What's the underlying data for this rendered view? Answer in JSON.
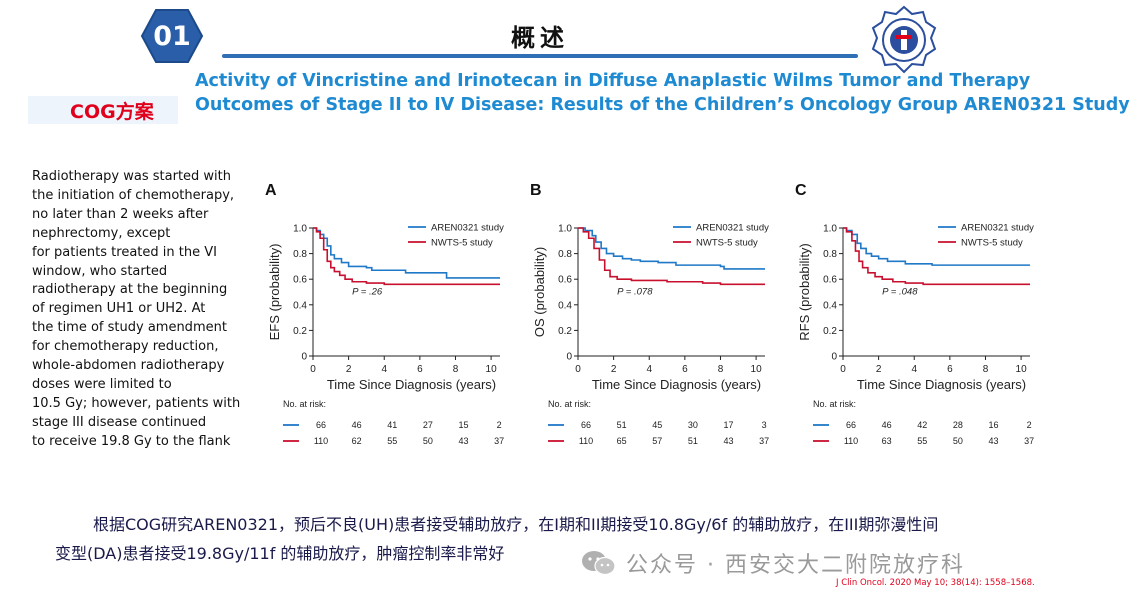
{
  "header": {
    "badge_number": "01",
    "title": "概述",
    "accent_color": "#2e6fb5",
    "badge_color": "#2a5ea8"
  },
  "cog_label": "COG方案",
  "study_title": {
    "line1": "Activity of Vincristine and Irinotecan in Diffuse Anaplastic Wilms Tumor and Therapy",
    "line2": "Outcomes of Stage II to IV Disease: Results of the Children’s Oncology Group AREN0321 Study"
  },
  "description_lines": [
    "Radiotherapy was started with",
    "the initiation of chemotherapy,",
    "no later than 2 weeks after",
    "nephrectomy, except",
    "for patients treated in the VI",
    "window, who started",
    "radiotherapy at the beginning",
    "of regimen UH1 or UH2. At",
    "the time of study amendment",
    "for chemotherapy reduction,",
    "whole-abdomen radiotherapy",
    "doses were limited to",
    "10.5 Gy; however, patients with",
    "stage III disease continued",
    "to receive 19.8 Gy to the flank"
  ],
  "chart_data": [
    {
      "type": "line",
      "panel_label": "A",
      "ylabel": "EFS (probability)",
      "xlabel": "Time Since Diagnosis (years)",
      "xlim": [
        0,
        10.5
      ],
      "ylim": [
        0,
        1.0
      ],
      "xticks": [
        0,
        2,
        4,
        6,
        8,
        10
      ],
      "yticks": [
        0,
        0.2,
        0.4,
        0.6,
        0.8,
        1.0
      ],
      "ytick_labels": [
        "0",
        "0.2",
        "0.4",
        "0.6",
        "0.8",
        "1.0"
      ],
      "p_value": "P = .26",
      "legend_position": "top-right",
      "series": [
        {
          "name": "AREN0321 study",
          "color": "#1f78c8",
          "points": [
            [
              0,
              1.0
            ],
            [
              0.2,
              0.98
            ],
            [
              0.4,
              0.95
            ],
            [
              0.6,
              0.92
            ],
            [
              0.8,
              0.86
            ],
            [
              1.0,
              0.79
            ],
            [
              1.2,
              0.76
            ],
            [
              1.6,
              0.73
            ],
            [
              2.0,
              0.7
            ],
            [
              3.0,
              0.69
            ],
            [
              3.3,
              0.67
            ],
            [
              5.0,
              0.67
            ],
            [
              5.2,
              0.65
            ],
            [
              7.4,
              0.65
            ],
            [
              7.5,
              0.61
            ],
            [
              10.5,
              0.61
            ]
          ]
        },
        {
          "name": "NWTS-5 study",
          "color": "#c8102e",
          "points": [
            [
              0,
              1.0
            ],
            [
              0.2,
              0.97
            ],
            [
              0.4,
              0.92
            ],
            [
              0.6,
              0.83
            ],
            [
              0.8,
              0.74
            ],
            [
              1.0,
              0.69
            ],
            [
              1.2,
              0.66
            ],
            [
              1.5,
              0.63
            ],
            [
              1.8,
              0.6
            ],
            [
              2.2,
              0.58
            ],
            [
              3.0,
              0.57
            ],
            [
              4.0,
              0.56
            ],
            [
              10.5,
              0.56
            ]
          ]
        }
      ],
      "risk_table": {
        "header": "No. at risk:",
        "rows": [
          {
            "color": "#1f78c8",
            "values": [
              "66",
              "46",
              "41",
              "27",
              "15",
              "2"
            ]
          },
          {
            "color": "#c8102e",
            "values": [
              "110",
              "62",
              "55",
              "50",
              "43",
              "37"
            ]
          }
        ]
      }
    },
    {
      "type": "line",
      "panel_label": "B",
      "ylabel": "OS (probability)",
      "xlabel": "Time Since Diagnosis (years)",
      "xlim": [
        0,
        10.5
      ],
      "ylim": [
        0,
        1.0
      ],
      "xticks": [
        0,
        2,
        4,
        6,
        8,
        10
      ],
      "yticks": [
        0,
        0.2,
        0.4,
        0.6,
        0.8,
        1.0
      ],
      "ytick_labels": [
        "0",
        "0.2",
        "0.4",
        "0.6",
        "0.8",
        "1.0"
      ],
      "p_value": "P = .078",
      "legend_position": "top-right",
      "series": [
        {
          "name": "AREN0321 study",
          "color": "#1f78c8",
          "points": [
            [
              0,
              1.0
            ],
            [
              0.4,
              0.98
            ],
            [
              0.8,
              0.94
            ],
            [
              1.0,
              0.89
            ],
            [
              1.3,
              0.84
            ],
            [
              1.6,
              0.8
            ],
            [
              2.0,
              0.78
            ],
            [
              2.5,
              0.76
            ],
            [
              3.0,
              0.75
            ],
            [
              3.5,
              0.74
            ],
            [
              4.5,
              0.73
            ],
            [
              5.5,
              0.71
            ],
            [
              8.0,
              0.7
            ],
            [
              8.2,
              0.68
            ],
            [
              10.5,
              0.68
            ]
          ]
        },
        {
          "name": "NWTS-5 study",
          "color": "#c8102e",
          "points": [
            [
              0,
              1.0
            ],
            [
              0.3,
              0.97
            ],
            [
              0.6,
              0.92
            ],
            [
              0.9,
              0.84
            ],
            [
              1.2,
              0.75
            ],
            [
              1.5,
              0.67
            ],
            [
              1.8,
              0.62
            ],
            [
              2.2,
              0.6
            ],
            [
              3.0,
              0.59
            ],
            [
              4.0,
              0.59
            ],
            [
              5.0,
              0.58
            ],
            [
              7.0,
              0.57
            ],
            [
              8.0,
              0.56
            ],
            [
              10.5,
              0.56
            ]
          ]
        }
      ],
      "risk_table": {
        "header": "No. at risk:",
        "rows": [
          {
            "color": "#1f78c8",
            "values": [
              "66",
              "51",
              "45",
              "30",
              "17",
              "3"
            ]
          },
          {
            "color": "#c8102e",
            "values": [
              "110",
              "65",
              "57",
              "51",
              "43",
              "37"
            ]
          }
        ]
      }
    },
    {
      "type": "line",
      "panel_label": "C",
      "ylabel": "RFS (probability)",
      "xlabel": "Time Since Diagnosis (years)",
      "xlim": [
        0,
        10.5
      ],
      "ylim": [
        0,
        1.0
      ],
      "xticks": [
        0,
        2,
        4,
        6,
        8,
        10
      ],
      "yticks": [
        0,
        0.2,
        0.4,
        0.6,
        0.8,
        1.0
      ],
      "ytick_labels": [
        "0",
        "0.2",
        "0.4",
        "0.6",
        "0.8",
        "1.0"
      ],
      "p_value": "P = .048",
      "legend_position": "top-right",
      "series": [
        {
          "name": "AREN0321 study",
          "color": "#1f78c8",
          "points": [
            [
              0,
              1.0
            ],
            [
              0.2,
              0.98
            ],
            [
              0.5,
              0.95
            ],
            [
              0.8,
              0.88
            ],
            [
              1.0,
              0.84
            ],
            [
              1.3,
              0.8
            ],
            [
              1.6,
              0.78
            ],
            [
              2.0,
              0.76
            ],
            [
              2.5,
              0.74
            ],
            [
              3.5,
              0.72
            ],
            [
              5.0,
              0.71
            ],
            [
              10.5,
              0.71
            ]
          ]
        },
        {
          "name": "NWTS-5 study",
          "color": "#c8102e",
          "points": [
            [
              0,
              1.0
            ],
            [
              0.2,
              0.97
            ],
            [
              0.5,
              0.9
            ],
            [
              0.7,
              0.82
            ],
            [
              0.9,
              0.74
            ],
            [
              1.1,
              0.69
            ],
            [
              1.4,
              0.65
            ],
            [
              1.8,
              0.62
            ],
            [
              2.2,
              0.6
            ],
            [
              2.8,
              0.58
            ],
            [
              3.5,
              0.57
            ],
            [
              4.5,
              0.56
            ],
            [
              10.5,
              0.56
            ]
          ]
        }
      ],
      "risk_table": {
        "header": "No. at risk:",
        "rows": [
          {
            "color": "#1f78c8",
            "values": [
              "66",
              "46",
              "42",
              "28",
              "16",
              "2"
            ]
          },
          {
            "color": "#c8102e",
            "values": [
              "110",
              "63",
              "55",
              "50",
              "43",
              "37"
            ]
          }
        ]
      }
    }
  ],
  "summary": {
    "line1": "根据COG研究AREN0321，预后不良(UH)患者接受辅助放疗，在I期和II期接受10.8Gy/6f 的辅助放疗，在III期弥漫性间",
    "line2": "变型(DA)患者接受19.8Gy/11f 的辅助放疗，肿瘤控制率非常好"
  },
  "watermark": "公众号 · 西安交大二附院放疗科",
  "citation": "J Clin Oncol. 2020 May 10; 38(14): 1558–1568."
}
